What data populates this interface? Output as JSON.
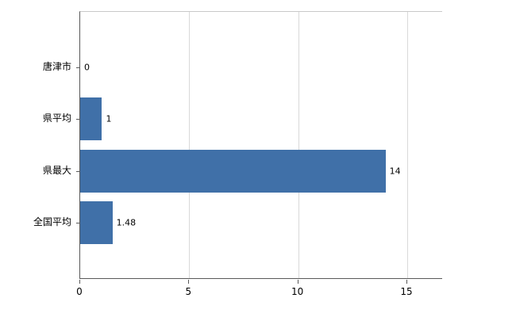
{
  "chart_data": {
    "type": "bar",
    "orientation": "horizontal",
    "title": "",
    "legend": "none",
    "grid": "vertical",
    "categories": [
      "唐津市",
      "県平均",
      "県最大",
      "全国平均"
    ],
    "values": [
      0,
      1,
      14,
      1.48
    ],
    "value_labels": [
      "0",
      "1",
      "14",
      "1.48"
    ],
    "x_ticks": [
      0,
      5,
      10,
      15
    ],
    "x_tick_labels": [
      "0",
      "5",
      "10",
      "15"
    ],
    "xlim": [
      0,
      16.6
    ],
    "colors": {
      "bar": "#4070A8",
      "gridline": "#d9d9d9",
      "plot_top_border": "#c9c9c9",
      "axis": "#595959",
      "text": "#000000"
    }
  }
}
